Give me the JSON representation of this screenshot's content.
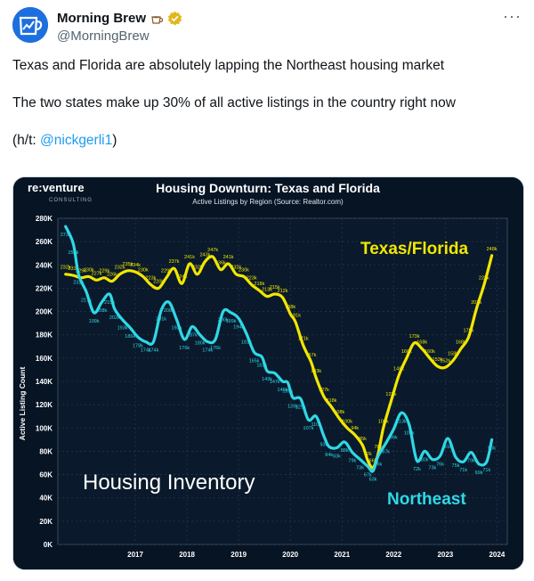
{
  "author": {
    "name": "Morning Brew",
    "handle": "@MorningBrew",
    "emoji_icon": "coffee-icon",
    "verified_icon": "verified-badge-icon",
    "more_label": "···"
  },
  "tweet": {
    "line1": "Texas and Florida are absolutely lapping the Northeast housing market",
    "line2": "The two states make up 30% of all active listings in the country right now",
    "ht_prefix": "(h/t: ",
    "ht_mention": "@nickgerli1",
    "ht_suffix": ")"
  },
  "chart_data": {
    "type": "line",
    "brand": "re:venture",
    "brand_sub": "CONSULTING",
    "title": "Housing Downturn: Texas and Florida",
    "subtitle": "Active Listings by Region (Source: Realtor.com)",
    "ylabel": "Active Listing Count",
    "annotation": "Housing Inventory",
    "ylim": [
      0,
      280
    ],
    "xlim": [
      2016.0,
      2024.7
    ],
    "y_ticks": [
      "0K",
      "20K",
      "40K",
      "60K",
      "80K",
      "100K",
      "120K",
      "140K",
      "160K",
      "180K",
      "200K",
      "220K",
      "240K",
      "260K",
      "280K"
    ],
    "x_ticks": [
      "2017",
      "2018",
      "2019",
      "2020",
      "2021",
      "2022",
      "2023",
      "2024"
    ],
    "colors": {
      "texas_florida": "#f2e600",
      "northeast": "#2fd8e6",
      "background": "#071424"
    },
    "series": [
      {
        "name": "Texas/Florida",
        "x": [
          2016.15,
          2016.3,
          2016.45,
          2016.6,
          2016.75,
          2016.9,
          2017.05,
          2017.2,
          2017.35,
          2017.5,
          2017.65,
          2017.8,
          2017.95,
          2018.1,
          2018.25,
          2018.4,
          2018.55,
          2018.7,
          2018.85,
          2019.0,
          2019.15,
          2019.3,
          2019.45,
          2019.6,
          2019.75,
          2019.9,
          2020.05,
          2020.2,
          2020.35,
          2020.5,
          2020.6,
          2020.75,
          2020.9,
          2021.0,
          2021.15,
          2021.3,
          2021.45,
          2021.6,
          2021.75,
          2021.9,
          2022.0,
          2022.1,
          2022.2,
          2022.3,
          2022.45,
          2022.6,
          2022.75,
          2022.9,
          2023.05,
          2023.2,
          2023.35,
          2023.5,
          2023.65,
          2023.8,
          2023.95,
          2024.1,
          2024.25,
          2024.4
        ],
        "values": [
          232,
          231,
          229,
          230,
          227,
          229,
          226,
          232,
          235,
          234,
          230,
          223,
          220,
          229,
          237,
          224,
          241,
          232,
          243,
          247,
          236,
          241,
          232,
          230,
          223,
          218,
          213,
          215,
          212,
          198,
          191,
          171,
          157,
          143,
          127,
          118,
          108,
          100,
          94,
          85,
          72,
          66,
          78,
          100,
          123,
          145,
          160,
          173,
          168,
          160,
          153,
          152,
          158,
          168,
          178,
          202,
          223,
          248
        ]
      },
      {
        "name": "Northeast",
        "x": [
          2016.15,
          2016.3,
          2016.4,
          2016.55,
          2016.7,
          2016.85,
          2017.0,
          2017.1,
          2017.25,
          2017.4,
          2017.55,
          2017.7,
          2017.85,
          2018.0,
          2018.15,
          2018.3,
          2018.45,
          2018.6,
          2018.75,
          2018.9,
          2019.05,
          2019.2,
          2019.35,
          2019.5,
          2019.65,
          2019.8,
          2019.95,
          2020.05,
          2020.2,
          2020.35,
          2020.45,
          2020.55,
          2020.7,
          2020.85,
          2021.0,
          2021.15,
          2021.25,
          2021.4,
          2021.55,
          2021.7,
          2021.85,
          2022.0,
          2022.1,
          2022.2,
          2022.35,
          2022.5,
          2022.65,
          2022.8,
          2022.95,
          2023.1,
          2023.25,
          2023.4,
          2023.55,
          2023.7,
          2023.85,
          2024.0,
          2024.15,
          2024.3,
          2024.4
        ],
        "values": [
          273,
          258,
          232,
          217,
          199,
          208,
          215,
          202,
          193,
          186,
          178,
          174,
          174,
          201,
          208,
          193,
          176,
          187,
          180,
          174,
          176,
          200,
          199,
          194,
          181,
          165,
          161,
          149,
          147,
          140,
          139,
          126,
          125,
          107,
          110,
          93,
          84,
          83,
          88,
          79,
          73,
          67,
          63,
          76,
          87,
          99,
          113,
          103,
          72,
          80,
          73,
          76,
          91,
          75,
          71,
          79,
          69,
          71,
          90
        ]
      }
    ]
  }
}
